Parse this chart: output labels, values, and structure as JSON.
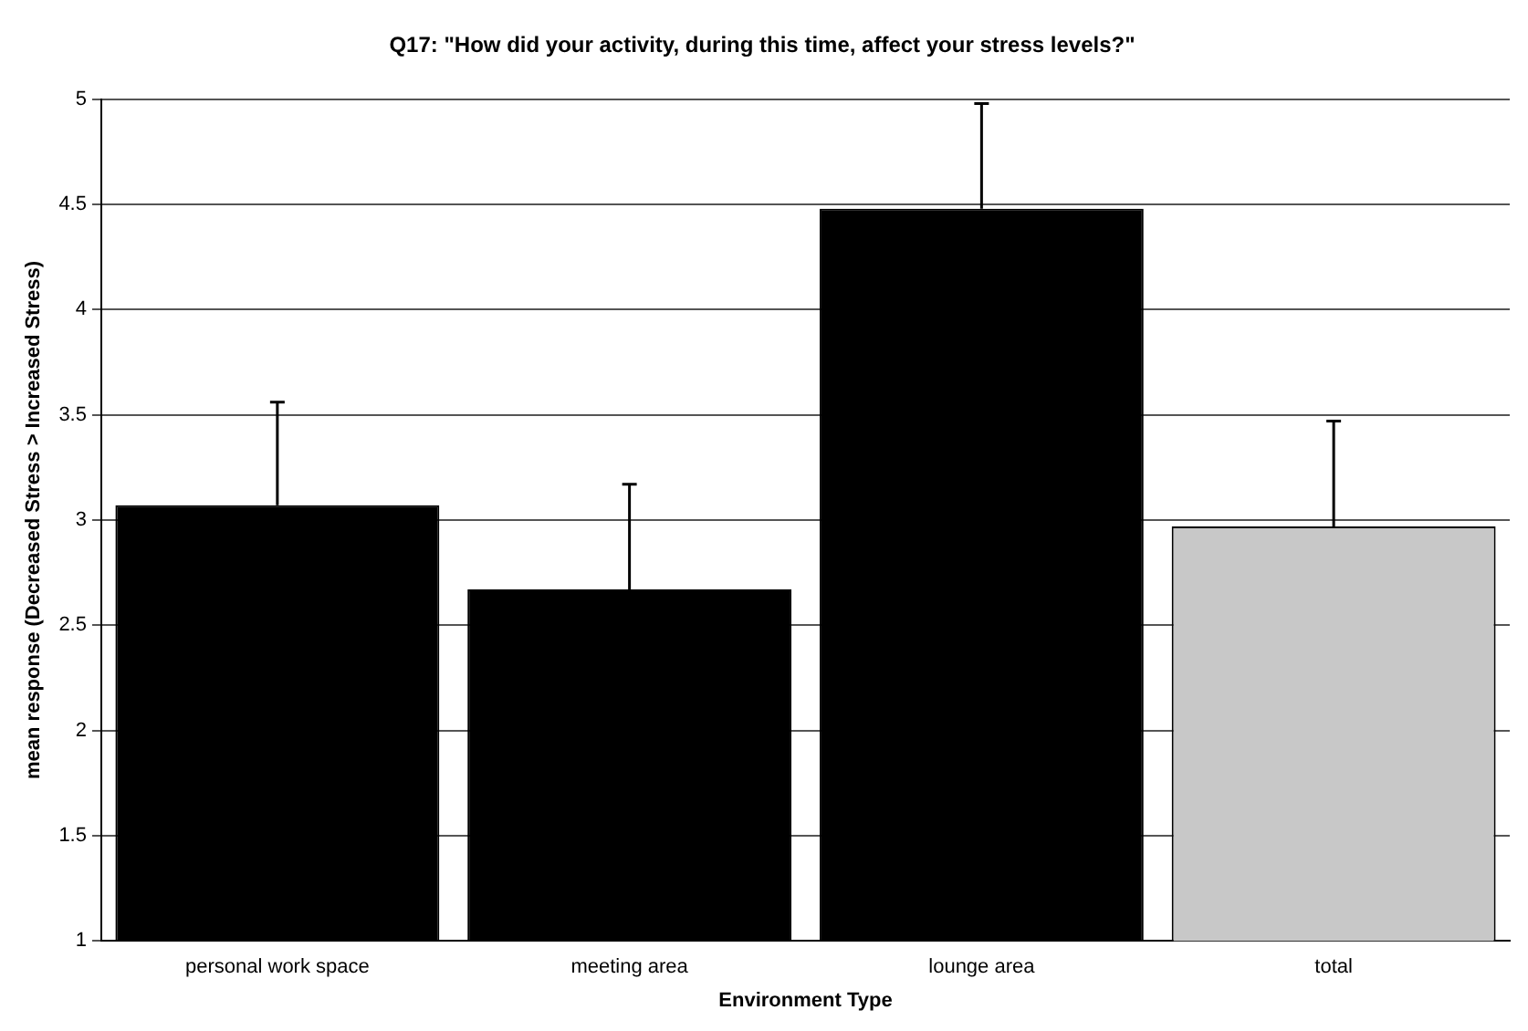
{
  "chart_data": {
    "type": "bar",
    "title": "Q17: \"How did your activity, during this time, affect your stress levels?\"",
    "xlabel": "Environment Type",
    "ylabel": "mean response (Decreased Stress > Increased Stress)",
    "categories": [
      "personal work space",
      "meeting area",
      "lounge area",
      "total"
    ],
    "values": [
      3.07,
      2.67,
      4.48,
      2.97
    ],
    "colors": [
      "#000000",
      "#000000",
      "#000000",
      "#c8c8c8"
    ],
    "errors": [
      [
        3.07,
        3.56
      ],
      [
        2.67,
        3.17
      ],
      [
        4.48,
        4.98
      ],
      [
        2.97,
        3.47
      ]
    ],
    "ylim": [
      1,
      5
    ],
    "yticks": [
      1,
      1.5,
      2,
      2.5,
      3,
      3.5,
      4,
      4.5,
      5
    ],
    "grid": "y",
    "legend": false
  }
}
